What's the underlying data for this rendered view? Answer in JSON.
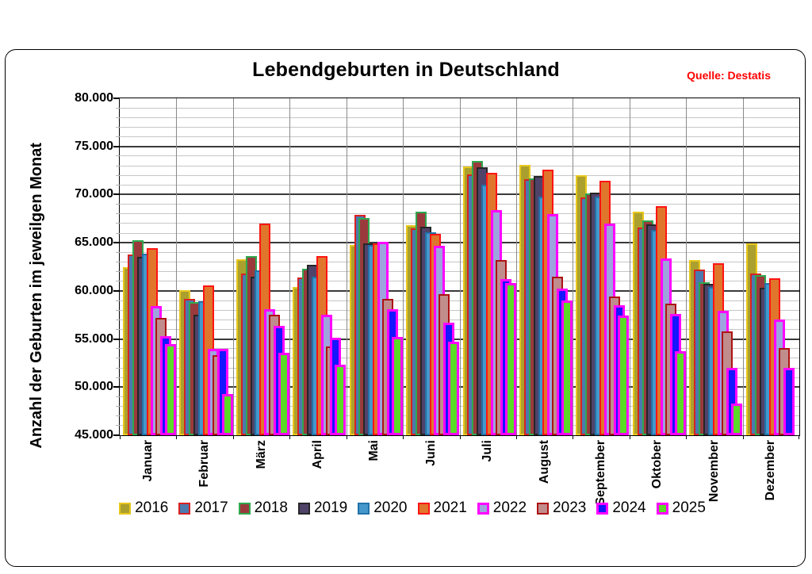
{
  "chart_data": {
    "type": "bar",
    "title": "Lebendgeburten in Deutschland",
    "source": "Quelle: Destatis",
    "ylabel": "Anzahl der Geburten im jeweilgen Monat",
    "xlabel": "",
    "ylim": [
      45000,
      80000
    ],
    "y_major_step": 5000,
    "y_minor_step": 1000,
    "y_tick_labels": [
      "45.000",
      "50.000",
      "55.000",
      "60.000",
      "65.000",
      "70.000",
      "75.000",
      "80.000"
    ],
    "grid": "horizontal major+minor, vertical category separators",
    "legend_position": "bottom",
    "categories": [
      "Januar",
      "Februar",
      "März",
      "April",
      "Mai",
      "Juni",
      "Juli",
      "August",
      "September",
      "Oktober",
      "November",
      "Dezember"
    ],
    "series": [
      {
        "name": "2016",
        "fill": "#ABA02E",
        "border": "#E8C71D",
        "border_px": 2,
        "values": [
          62500,
          60100,
          63300,
          60400,
          64800,
          66800,
          72900,
          73100,
          72000,
          68200,
          63200,
          64900
        ]
      },
      {
        "name": "2017",
        "fill": "#4C79AE",
        "border": "#D92121",
        "border_px": 2,
        "values": [
          63800,
          59200,
          61800,
          61400,
          67900,
          66500,
          72100,
          71600,
          69700,
          66600,
          62200,
          61800
        ]
      },
      {
        "name": "2018",
        "fill": "#9A3A3C",
        "border": "#2FA84F",
        "border_px": 2,
        "values": [
          65300,
          58800,
          63600,
          62300,
          67600,
          68200,
          73500,
          71700,
          70100,
          67300,
          60900,
          61600
        ]
      },
      {
        "name": "2019",
        "fill": "#50436A",
        "border": "#262626",
        "border_px": 2,
        "values": [
          63500,
          57500,
          61500,
          62700,
          64900,
          66700,
          72800,
          71900,
          70200,
          66900,
          60700,
          60300
        ]
      },
      {
        "name": "2020",
        "fill": "#4498CB",
        "border": "#2272A8",
        "border_px": 2,
        "values": [
          63900,
          58900,
          62100,
          61500,
          64800,
          66100,
          71000,
          69800,
          69800,
          66300,
          60400,
          60800
        ]
      },
      {
        "name": "2021",
        "fill": "#E0762C",
        "border": "#FF1414",
        "border_px": 2,
        "values": [
          64400,
          60600,
          67000,
          63600,
          64900,
          65900,
          72300,
          72600,
          71400,
          68800,
          62900,
          61300
        ]
      },
      {
        "name": "2022",
        "fill": "#9EA3DD",
        "border": "#FF00FF",
        "border_px": 3,
        "values": [
          58400,
          54000,
          58100,
          57500,
          65100,
          64700,
          68400,
          68000,
          67000,
          63400,
          57900,
          57000
        ]
      },
      {
        "name": "2023",
        "fill": "#C18C8C",
        "border": "#AD1212",
        "border_px": 2,
        "values": [
          57200,
          53300,
          57500,
          54200,
          59200,
          59700,
          63200,
          61500,
          59400,
          58700,
          55800,
          54100
        ]
      },
      {
        "name": "2024",
        "fill": "#1616FF",
        "border": "#FF00FF",
        "border_px": 3,
        "values": [
          55300,
          54000,
          56400,
          55100,
          58100,
          56700,
          61200,
          60200,
          58500,
          57600,
          52000,
          52000
        ]
      },
      {
        "name": "2025",
        "fill": "#5ADB26",
        "border": "#FF00FF",
        "border_px": 3,
        "values": [
          54500,
          49300,
          53600,
          52300,
          55200,
          54700,
          60800,
          59000,
          57400,
          53700,
          48300,
          null
        ]
      }
    ]
  }
}
